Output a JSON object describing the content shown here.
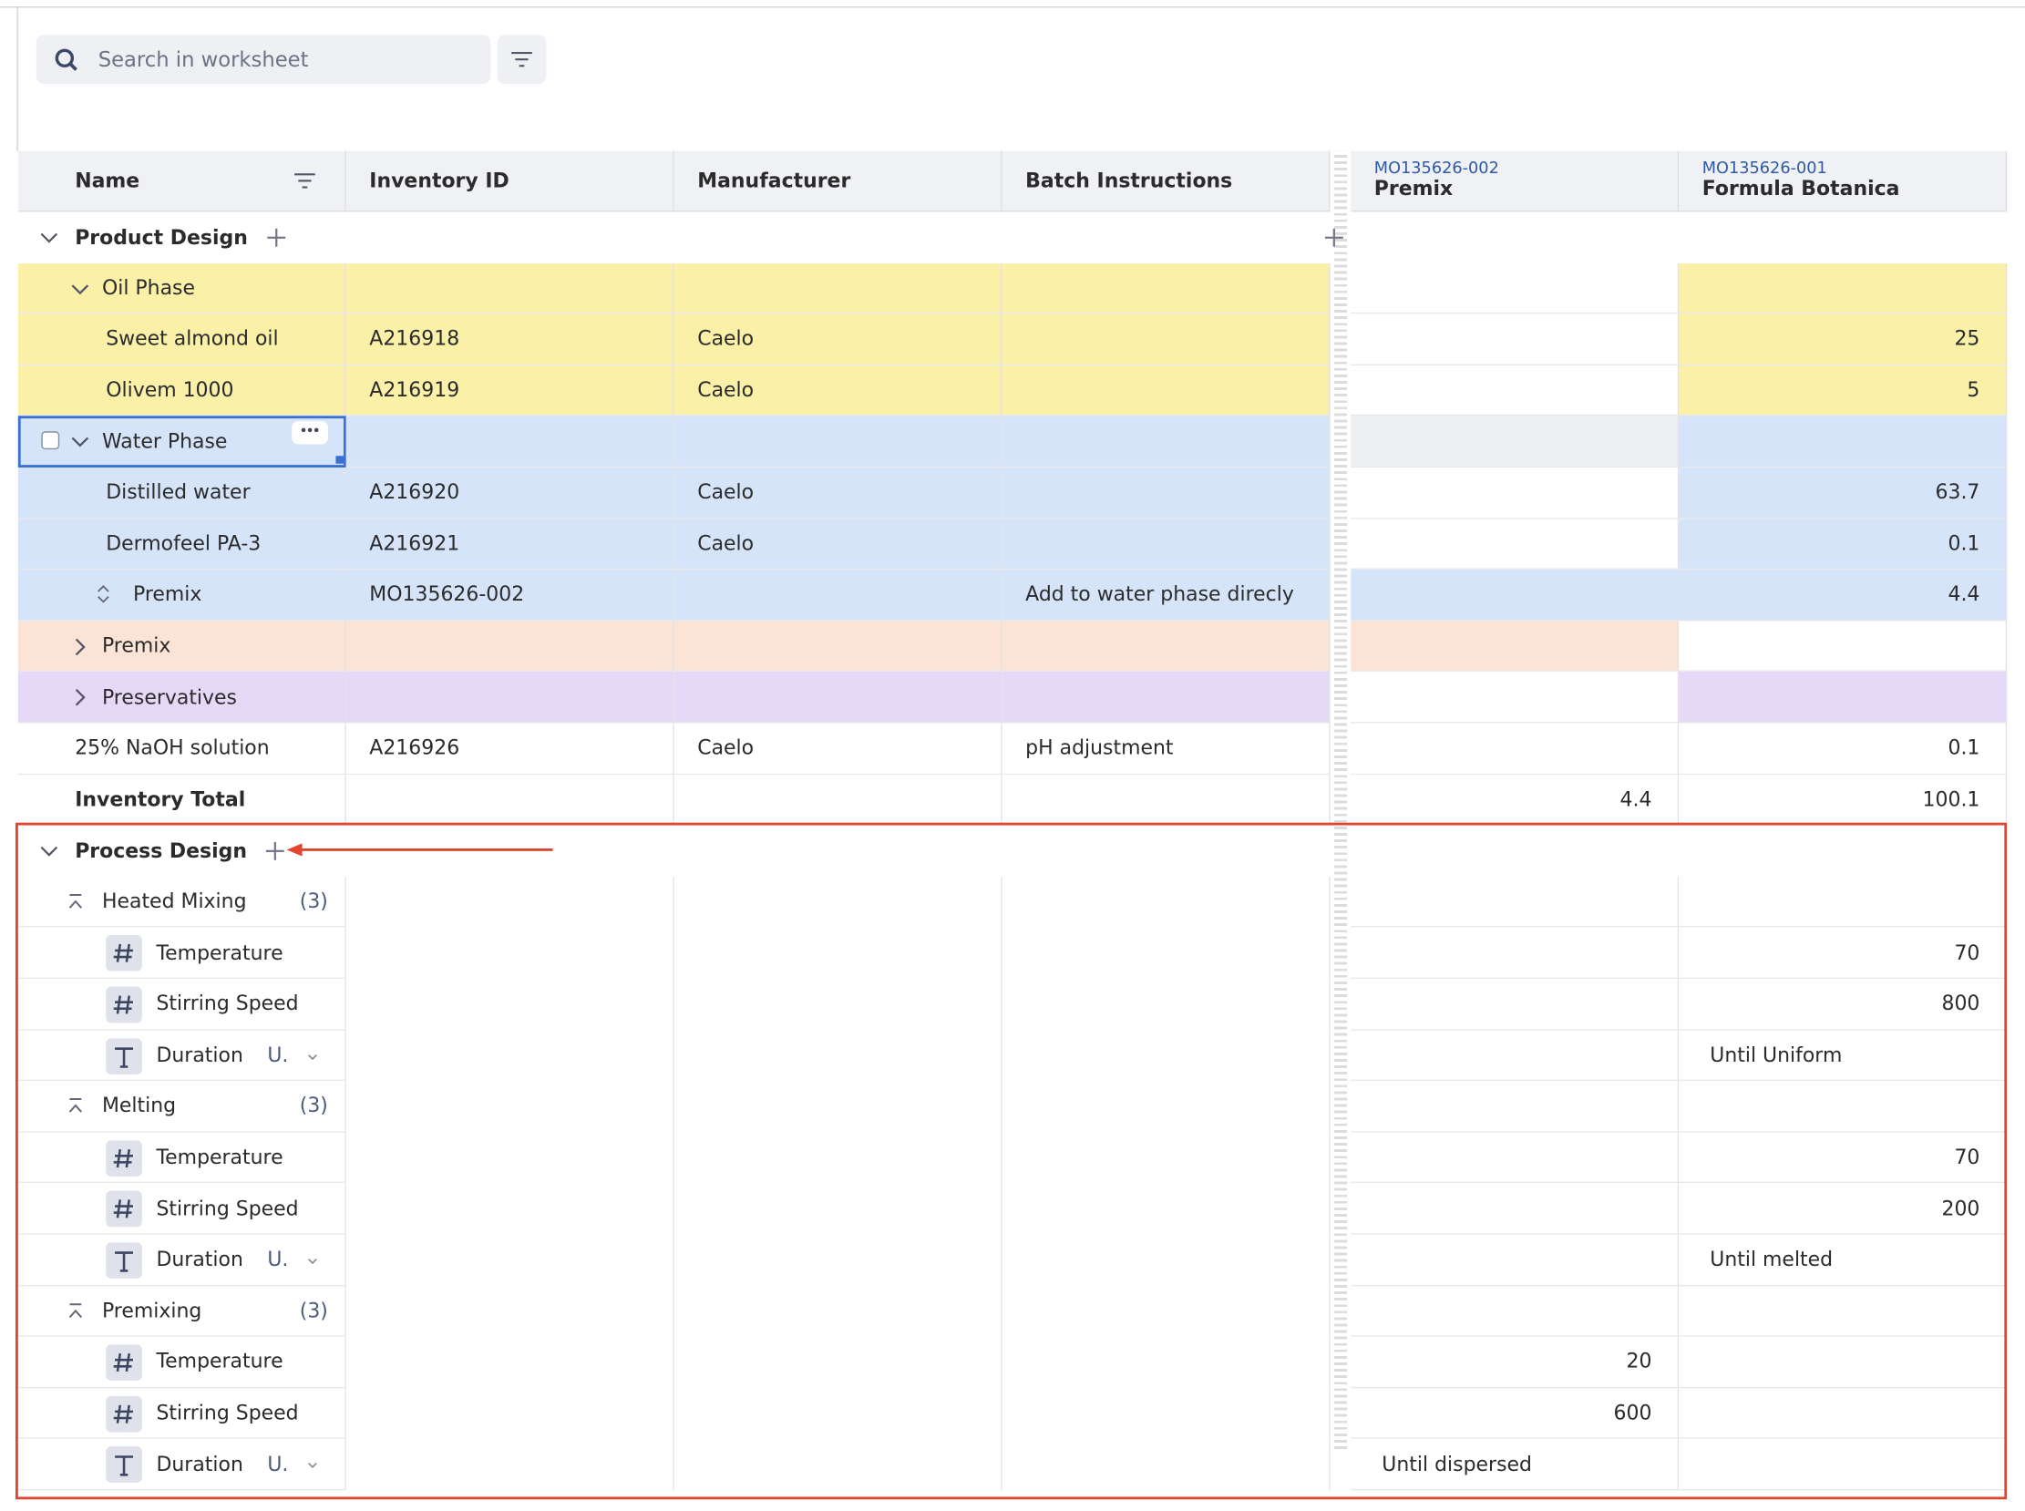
{
  "search": {
    "placeholder": "Search in worksheet"
  },
  "columns": [
    {
      "label": "Name"
    },
    {
      "label": "Inventory ID"
    },
    {
      "label": "Manufacturer"
    },
    {
      "label": "Batch Instructions"
    },
    {
      "code": "MO135626-002",
      "label": "Premix"
    },
    {
      "code": "MO135626-001",
      "label": "Formula Botanica"
    }
  ],
  "rows": [
    {
      "kind": "section",
      "name": "Product Design"
    },
    {
      "kind": "group",
      "name": "Oil Phase",
      "expanded": true,
      "fill": "#faf0a8",
      "premix_fill": "#ffffff",
      "formula_fill": "#faf0a8"
    },
    {
      "kind": "item",
      "name": "Sweet almond oil",
      "cells": [
        "A216918",
        "Caelo",
        null,
        null,
        25
      ],
      "fill": "#faf0a8",
      "premix_fill": "#ffffff",
      "formula_fill": "#faf0a8"
    },
    {
      "kind": "item",
      "name": "Olivem 1000",
      "cells": [
        "A216919",
        "Caelo",
        null,
        null,
        5
      ],
      "fill": "#faf0a8",
      "premix_fill": "#ffffff",
      "formula_fill": "#faf0a8"
    },
    {
      "kind": "group",
      "name": "Water Phase",
      "expanded": true,
      "selected": true,
      "fill": "#d6e4fa",
      "premix_fill": "#eeeff2",
      "formula_fill": "#d6e4fa"
    },
    {
      "kind": "item",
      "name": "Distilled water",
      "cells": [
        "A216920",
        "Caelo",
        null,
        null,
        63.7
      ],
      "fill": "#d6e4fa",
      "premix_fill": "#ffffff",
      "formula_fill": "#d6e4fa"
    },
    {
      "kind": "item",
      "name": "Dermofeel PA-3",
      "cells": [
        "A216921",
        "Caelo",
        null,
        null,
        0.1
      ],
      "fill": "#d6e4fa",
      "premix_fill": "#ffffff",
      "formula_fill": "#d6e4fa"
    },
    {
      "kind": "ref",
      "name": "Premix",
      "cells": [
        "MO135626-002",
        null,
        "Add to water phase direcly",
        null,
        4.4
      ],
      "fill": "#d6e4fa",
      "premix_fill": "#d6e4fa",
      "formula_fill": "#d6e4fa"
    },
    {
      "kind": "group",
      "name": "Premix",
      "expanded": false,
      "fill": "#fbe3d6",
      "premix_fill": "#fbe3d6",
      "formula_fill": "#ffffff"
    },
    {
      "kind": "group",
      "name": "Preservatives",
      "expanded": false,
      "fill": "#e6d9f8",
      "premix_fill": "#ffffff",
      "formula_fill": "#e6d9f8"
    },
    {
      "kind": "plain",
      "name": "25% NaOH solution",
      "cells": [
        "A216926",
        "Caelo",
        "pH adjustment",
        null,
        0.1
      ]
    },
    {
      "kind": "total",
      "name": "Inventory Total",
      "cells": [
        null,
        null,
        null,
        4.4,
        100.1
      ]
    },
    {
      "kind": "section",
      "name": "Process Design"
    },
    {
      "kind": "step",
      "name": "Heated Mixing",
      "count_label": "(3)"
    },
    {
      "kind": "param",
      "ptype": "number",
      "name": "Temperature",
      "cells": [
        null,
        null,
        null,
        null,
        70
      ]
    },
    {
      "kind": "param",
      "ptype": "number",
      "name": "Stirring Speed",
      "cells": [
        null,
        null,
        null,
        null,
        800
      ]
    },
    {
      "kind": "param",
      "ptype": "text",
      "name": "Duration",
      "unit": "U.",
      "cells": [
        null,
        null,
        null,
        null,
        "Until Uniform"
      ]
    },
    {
      "kind": "step",
      "name": "Melting",
      "count_label": "(3)"
    },
    {
      "kind": "param",
      "ptype": "number",
      "name": "Temperature",
      "cells": [
        null,
        null,
        null,
        null,
        70
      ]
    },
    {
      "kind": "param",
      "ptype": "number",
      "name": "Stirring Speed",
      "cells": [
        null,
        null,
        null,
        null,
        200
      ]
    },
    {
      "kind": "param",
      "ptype": "text",
      "name": "Duration",
      "unit": "U.",
      "cells": [
        null,
        null,
        null,
        null,
        "Until melted"
      ]
    },
    {
      "kind": "step",
      "name": "Premixing",
      "count_label": "(3)"
    },
    {
      "kind": "param",
      "ptype": "number",
      "name": "Temperature",
      "cells": [
        null,
        null,
        null,
        20,
        null
      ]
    },
    {
      "kind": "param",
      "ptype": "number",
      "name": "Stirring Speed",
      "cells": [
        null,
        null,
        null,
        600,
        null
      ]
    },
    {
      "kind": "param",
      "ptype": "text",
      "name": "Duration",
      "unit": "U.",
      "cells": [
        null,
        null,
        null,
        "Until dispersed",
        null
      ]
    }
  ]
}
